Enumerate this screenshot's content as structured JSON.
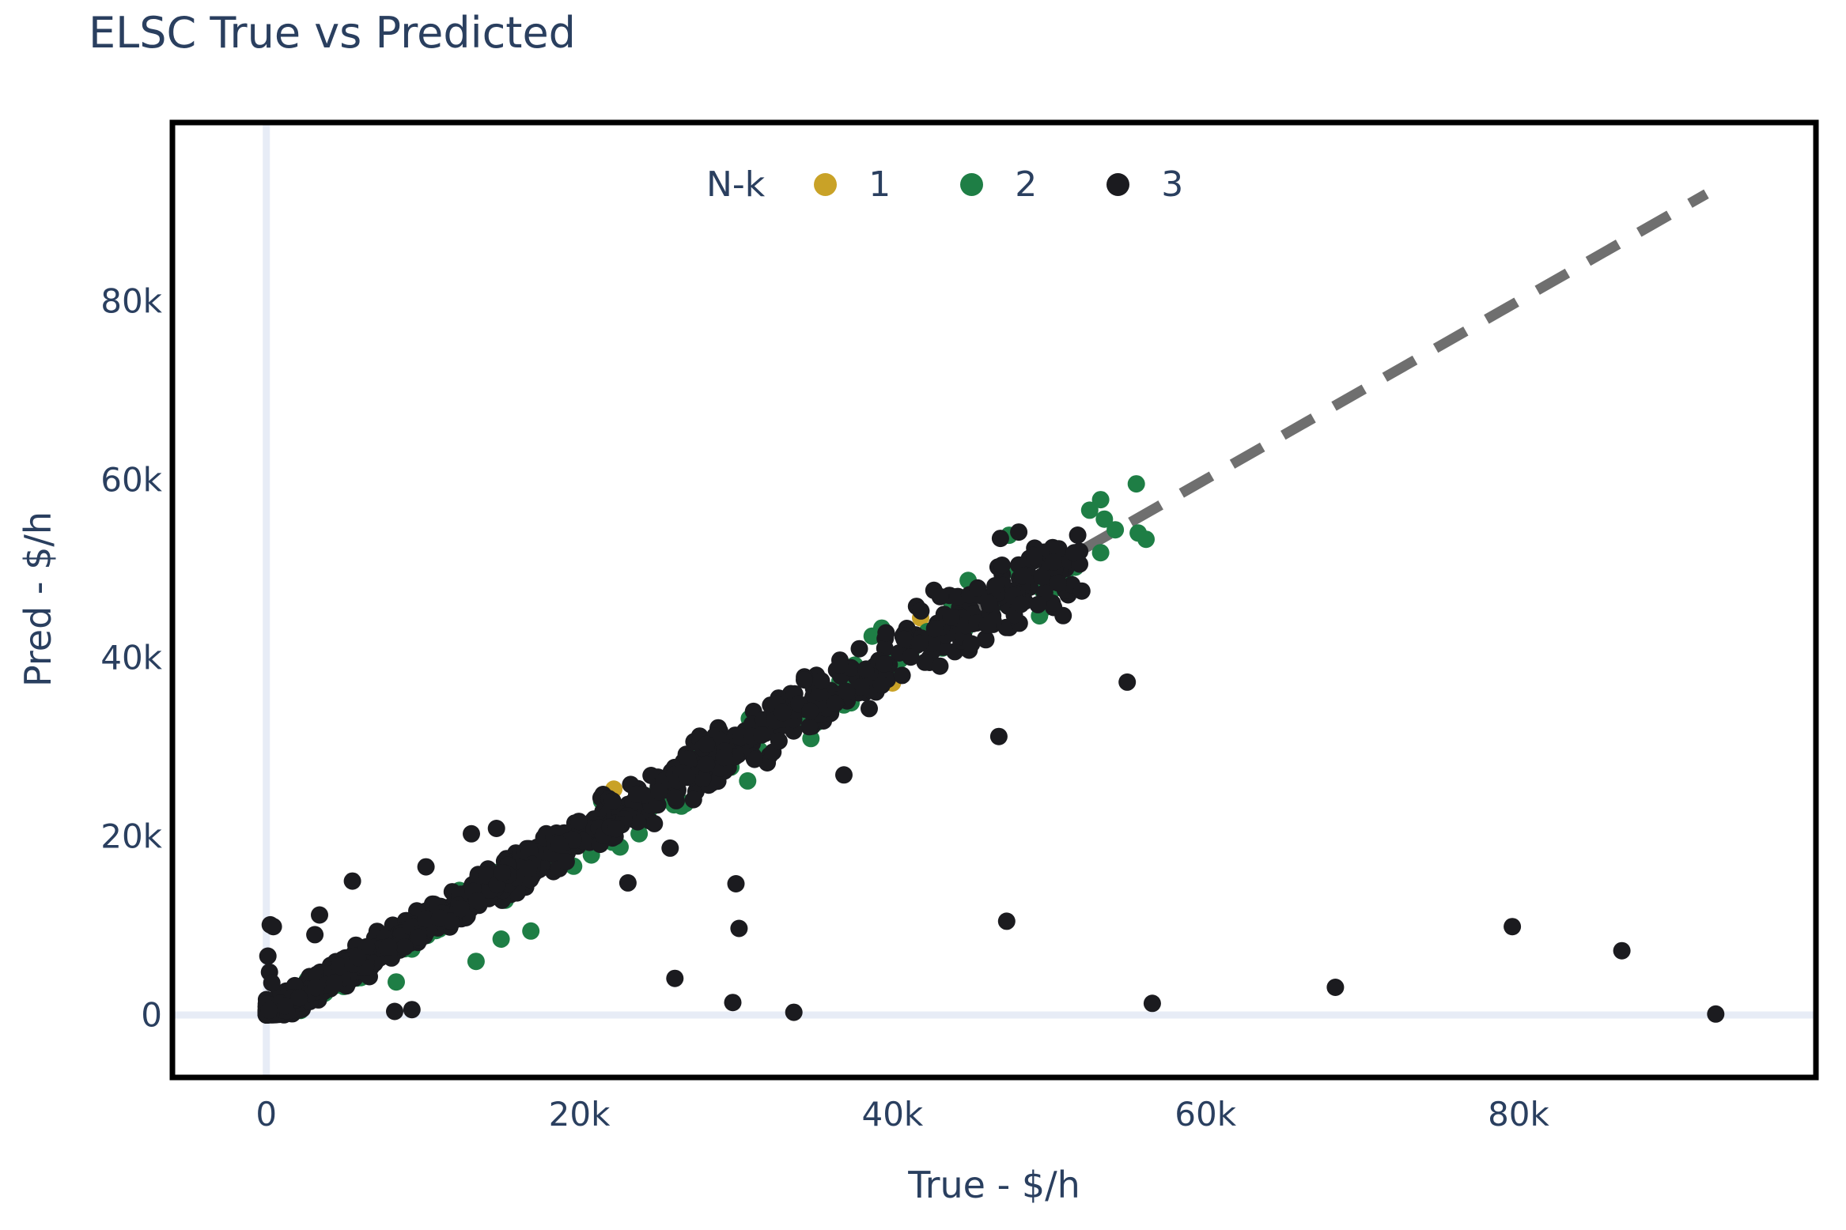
{
  "page": {
    "title": "ELSC True vs Predicted"
  },
  "colors": {
    "text": "#2a3f5f",
    "frame": "#000000",
    "background": "#ffffff",
    "zeroline": "#e7ecf6",
    "identity_line": "#6f6f6f"
  },
  "chart_data": {
    "type": "scatter",
    "title": "ELSC True vs Predicted",
    "xlabel": "True - $/h",
    "ylabel": "Pred - $/h",
    "xlim": [
      -6000,
      99000
    ],
    "ylim": [
      -7000,
      100000
    ],
    "grid": false,
    "zerolines": true,
    "x_ticks": {
      "values": [
        0,
        20000,
        40000,
        60000,
        80000
      ],
      "labels": [
        "0",
        "20k",
        "40k",
        "60k",
        "80k"
      ]
    },
    "y_ticks": {
      "values": [
        0,
        20000,
        40000,
        60000,
        80000
      ],
      "labels": [
        "0",
        "20k",
        "40k",
        "60k",
        "80k"
      ]
    },
    "legend": {
      "title": "N-k",
      "position": "top-center",
      "items": [
        {
          "label": "1",
          "color": "#c9a227"
        },
        {
          "label": "2",
          "color": "#1e7e45"
        },
        {
          "label": "3",
          "color": "#1b1b1f"
        }
      ]
    },
    "identity_line": {
      "x": [
        0,
        92000
      ],
      "y": [
        0,
        92000
      ],
      "style": "dashed",
      "color": "#6f6f6f",
      "width": 13,
      "dash": [
        44,
        30
      ]
    },
    "marker_diameter_px": 22,
    "series": [
      {
        "name": "1",
        "color": "#c9a227",
        "points": [
          [
            40000,
            37200
          ],
          [
            41800,
            44500
          ],
          [
            44600,
            44300
          ],
          [
            45800,
            44100
          ],
          [
            22200,
            25300
          ]
        ]
      },
      {
        "name": "2",
        "color": "#1e7e45",
        "points": [
          [
            8300,
            3700
          ],
          [
            13400,
            6000
          ],
          [
            15000,
            8500
          ],
          [
            16900,
            9400
          ],
          [
            48600,
            49800
          ],
          [
            49900,
            50000
          ],
          [
            50200,
            47600
          ],
          [
            51000,
            50100
          ],
          [
            53300,
            51800
          ],
          [
            55700,
            54000
          ],
          [
            56200,
            53300
          ]
        ],
        "cloud": {
          "n": 140,
          "seed": 7,
          "x_max": 56000,
          "x_pow": 1.3,
          "noise_base": 700,
          "noise_slope": 0.04,
          "noise_shift": -400
        }
      },
      {
        "name": "3",
        "color": "#1b1b1f",
        "points": [
          [
            8200,
            400
          ],
          [
            9300,
            600
          ],
          [
            23100,
            14800
          ],
          [
            25800,
            18700
          ],
          [
            26100,
            4100
          ],
          [
            29800,
            1400
          ],
          [
            30000,
            14700
          ],
          [
            30200,
            9700
          ],
          [
            33700,
            300
          ],
          [
            36900,
            26900
          ],
          [
            46800,
            31200
          ],
          [
            47300,
            10500
          ],
          [
            55000,
            37300
          ],
          [
            56600,
            1300
          ],
          [
            68300,
            3100
          ],
          [
            79600,
            9900
          ],
          [
            86600,
            7200
          ],
          [
            92600,
            100
          ],
          [
            250,
            10100
          ],
          [
            450,
            9900
          ],
          [
            100,
            6600
          ],
          [
            200,
            4800
          ],
          [
            350,
            3600
          ],
          [
            3100,
            9000
          ],
          [
            3400,
            11200
          ],
          [
            5500,
            15000
          ],
          [
            10200,
            16600
          ],
          [
            13100,
            20300
          ],
          [
            14700,
            20900
          ],
          [
            46900,
            53400
          ],
          [
            47000,
            50400
          ],
          [
            48200,
            46000
          ],
          [
            52100,
            47500
          ]
        ],
        "cloud": {
          "n": 1450,
          "seed": 42,
          "x_max": 52000,
          "x_pow": 3,
          "noise_base": 600,
          "noise_slope": 0.035,
          "noise_shift": 0
        }
      }
    ]
  }
}
